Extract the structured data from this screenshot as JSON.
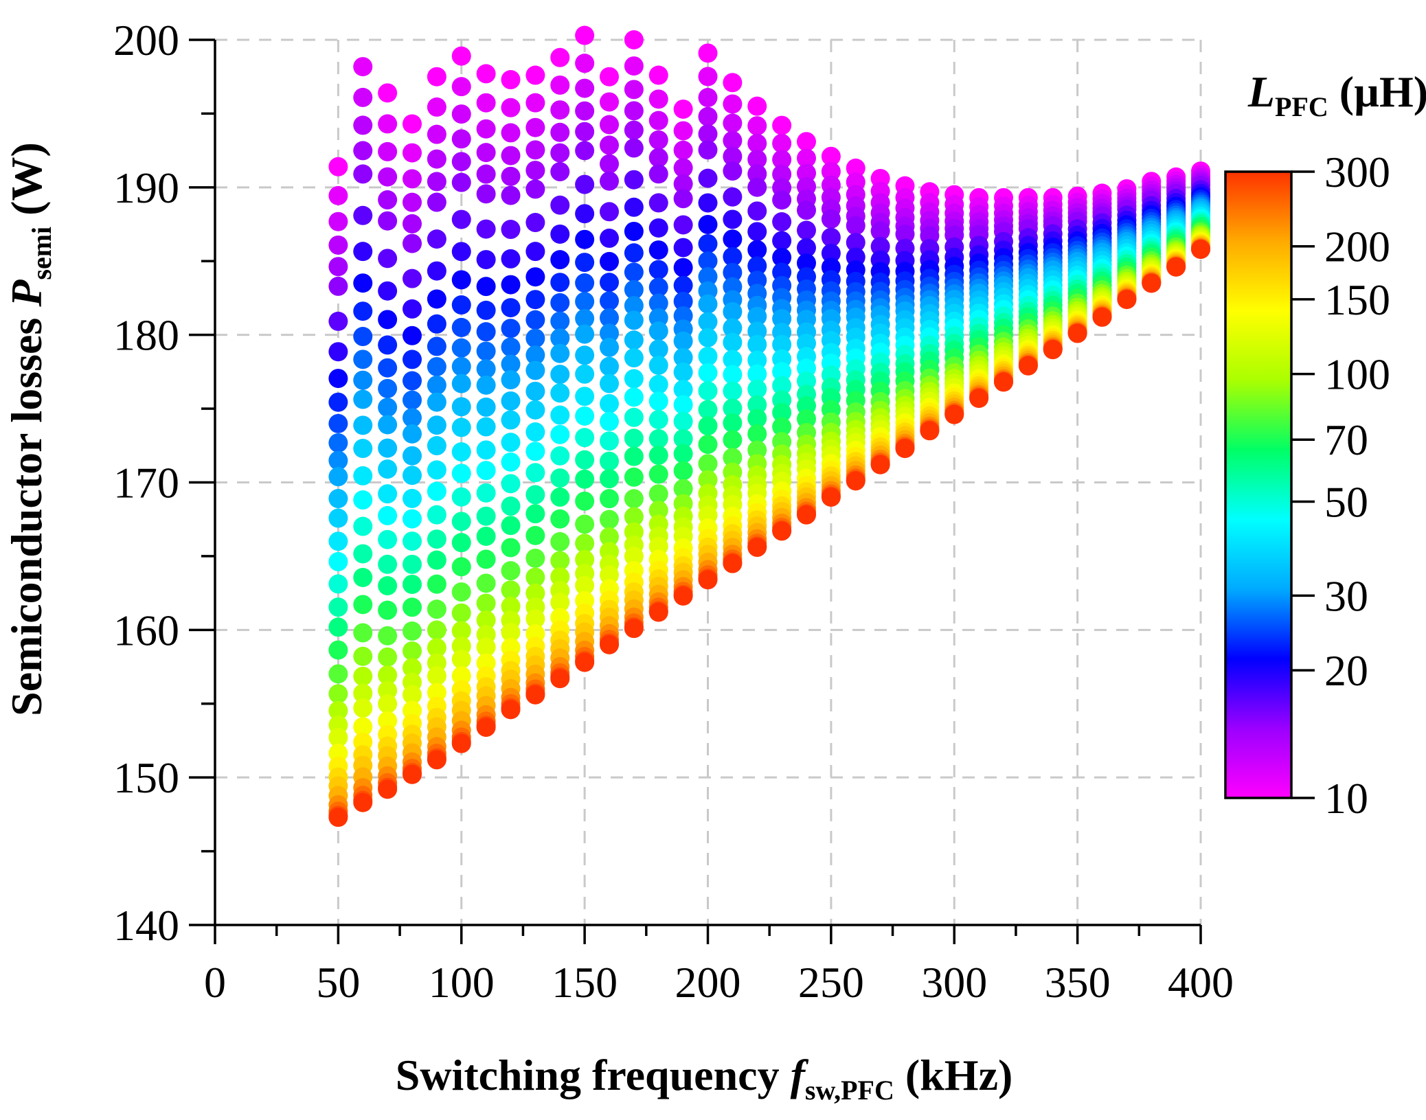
{
  "chart_data": {
    "type": "scatter",
    "xlabel": {
      "prefix": "Switching frequency ",
      "symbol": "f",
      "subscript": "sw,PFC",
      "suffix": " (kHz)"
    },
    "ylabel": {
      "prefix": "Semiconductor losses ",
      "symbol": "P",
      "subscript": "semi",
      "suffix": " (W)"
    },
    "colorbar_label": {
      "symbol": "L",
      "subscript": "PFC",
      "suffix": " (µH)"
    },
    "xlim": [
      0,
      400
    ],
    "ylim": [
      140,
      200
    ],
    "xticks": [
      0,
      50,
      100,
      150,
      200,
      250,
      300,
      350,
      400
    ],
    "yticks": [
      140,
      150,
      160,
      170,
      180,
      190,
      200
    ],
    "colorbar_ticks": [
      10,
      20,
      30,
      50,
      70,
      100,
      150,
      200,
      300
    ],
    "colorbar_scale": "log",
    "colorbar_range": [
      10,
      300
    ],
    "colormap": [
      "#ff00ff",
      "#9b00ff",
      "#0000ff",
      "#00aaff",
      "#00ffff",
      "#00ff66",
      "#aaff00",
      "#ffff00",
      "#ffaa00",
      "#ff3300"
    ],
    "grid": true,
    "x_values_khz": [
      50,
      60,
      70,
      80,
      90,
      100,
      110,
      120,
      130,
      140,
      150,
      160,
      170,
      180,
      190,
      200,
      210,
      220,
      230,
      240,
      250,
      260,
      270,
      280,
      290,
      300,
      310,
      320,
      330,
      340,
      350,
      360,
      370,
      380,
      390,
      400
    ],
    "lower_envelope_300uH": [
      147.3,
      148.3,
      149.2,
      150.2,
      151.2,
      152.3,
      153.4,
      154.6,
      155.6,
      156.7,
      157.8,
      159.0,
      160.1,
      161.2,
      162.3,
      163.4,
      164.5,
      165.6,
      166.7,
      167.8,
      169.0,
      170.1,
      171.2,
      172.3,
      173.5,
      174.6,
      175.7,
      176.8,
      177.9,
      179.0,
      180.1,
      181.2,
      182.4,
      183.5,
      184.6,
      185.8
    ],
    "upper_envelope_10uH": [
      191.4,
      200.5,
      196.4,
      194.3,
      197.5,
      198.9,
      197.7,
      197.3,
      197.6,
      198.8,
      200.3,
      197.5,
      200.0,
      197.6,
      195.3,
      199.1,
      197.1,
      195.5,
      194.2,
      193.1,
      192.1,
      191.3,
      190.6,
      190.1,
      189.7,
      189.5,
      189.3,
      189.3,
      189.3,
      189.3,
      189.4,
      189.6,
      189.9,
      190.4,
      190.7,
      191.1
    ],
    "inductance_levels_uH": [
      10,
      11,
      12,
      13,
      14,
      15,
      17,
      19,
      21,
      23,
      25,
      27,
      29,
      31,
      34,
      37,
      41,
      45,
      50,
      56,
      62,
      70,
      80,
      90,
      100,
      110,
      120,
      135,
      150,
      165,
      180,
      200,
      225,
      250,
      275,
      300
    ]
  }
}
